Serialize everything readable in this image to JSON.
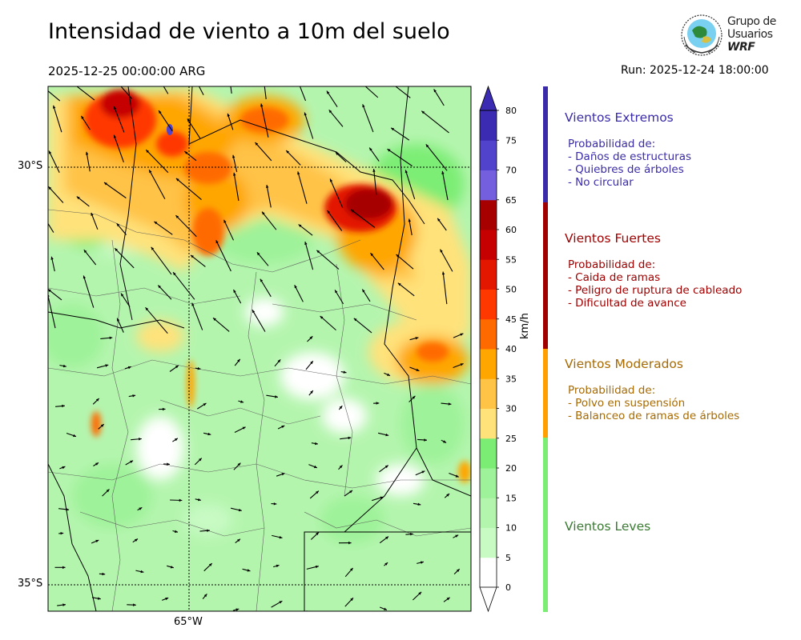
{
  "title": "Intensidad de viento a 10m del suelo",
  "valid_time": "2025-12-25 00:00:00 ARG",
  "run_time": "Run: 2025-12-24 18:00:00",
  "logo": {
    "line1": "Grupo de",
    "line2": "Usuarios",
    "line3": "WRF"
  },
  "map": {
    "lat_labels": [
      "30°S",
      "35°S"
    ],
    "lon_labels": [
      "65°W"
    ],
    "colorbar_unit": "km/h",
    "colorbar_ticks": [
      "0",
      "5",
      "10",
      "15",
      "20",
      "25",
      "30",
      "35",
      "40",
      "45",
      "50",
      "55",
      "60",
      "65",
      "70",
      "75",
      "80"
    ],
    "colorbar_colors": [
      "#ffffff",
      "#c8fac4",
      "#b4f5ae",
      "#9ef299",
      "#7ced74",
      "#ffe27a",
      "#ffc346",
      "#ffa600",
      "#ff6a00",
      "#ff3800",
      "#e31600",
      "#c60000",
      "#a70000",
      "#7460de",
      "#5243cc",
      "#3b2bb2"
    ]
  },
  "categories": [
    {
      "title": "Vientos Extremos",
      "color": "#3a2ca8",
      "bar_color": "#3a2ca8",
      "lines": [
        "Probabilidad de:",
        "- Daños de estructuras",
        "- Quiebres de árboles",
        "- No circular"
      ]
    },
    {
      "title": "Vientos Fuertes",
      "color": "#a00000",
      "bar_color": "#a00000",
      "lines": [
        "Probabilidad de:",
        "- Caida de ramas",
        "- Peligro de ruptura de cableado",
        "- Dificultad de avance"
      ]
    },
    {
      "title": "Vientos Moderados",
      "color": "#a86a00",
      "bar_color": "#ffa000",
      "lines": [
        "Probabilidad de:",
        "- Polvo en suspensión",
        "- Balanceo de ramas de árboles"
      ]
    },
    {
      "title": "Vientos Leves",
      "color": "#3a7a32",
      "bar_color": "#7ced74",
      "lines": []
    }
  ]
}
